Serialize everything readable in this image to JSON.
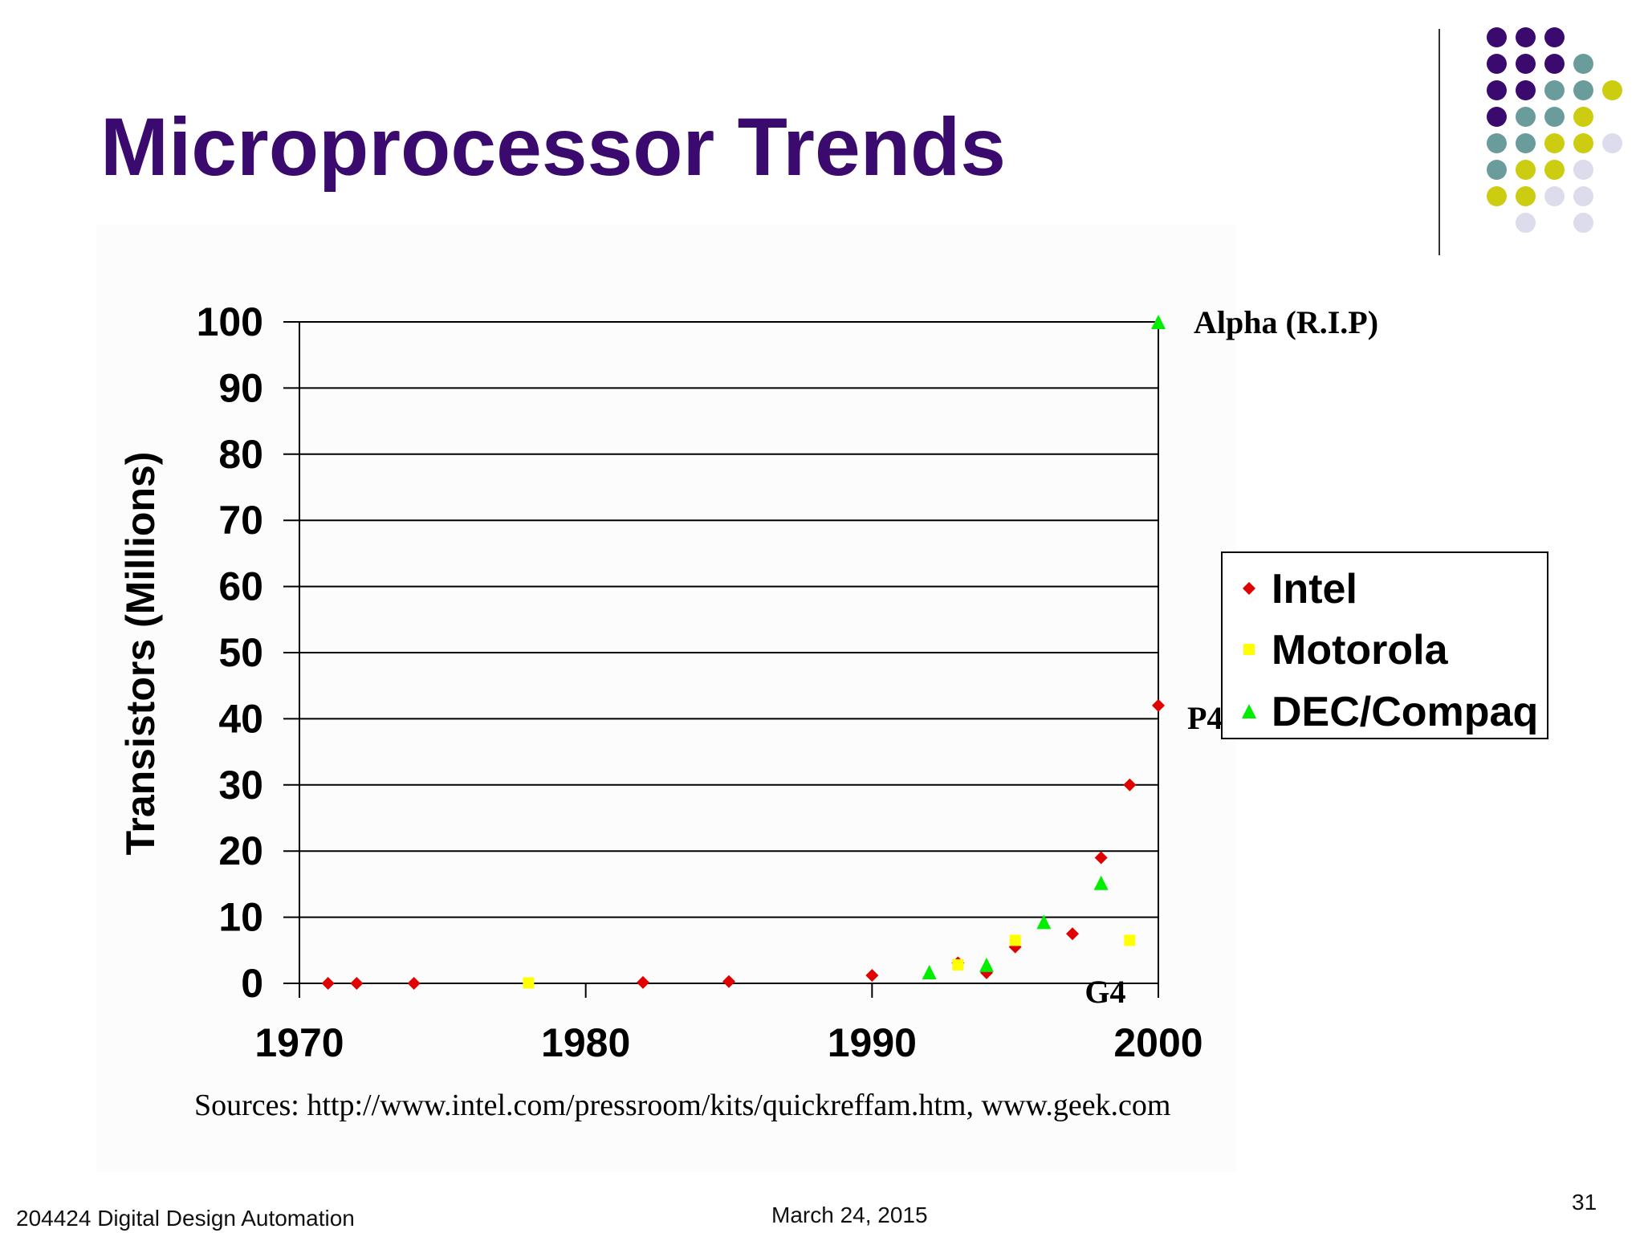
{
  "slide": {
    "title": "Microprocessor Trends",
    "sources": "Sources: http://www.intel.com/pressroom/kits/quickreffam.htm, www.geek.com",
    "footer_left": "204424 Digital Design Automation",
    "footer_center": "March 24, 2015",
    "page_number": "31",
    "accent_colors": {
      "title": "#3a0a6e",
      "purple": "#3a0a6e",
      "teal": "#6a9c9c",
      "olive": "#cccc10",
      "lavender": "#dcdcec"
    }
  },
  "chart_data": {
    "type": "scatter",
    "title": "",
    "xlabel": "",
    "ylabel": "Transistors (Millions)",
    "xlim": [
      1970,
      2000
    ],
    "ylim": [
      0,
      100
    ],
    "x_ticks": [
      "1970",
      "1980",
      "1990",
      "2000"
    ],
    "y_ticks": [
      "0",
      "10",
      "20",
      "30",
      "40",
      "50",
      "60",
      "70",
      "80",
      "90",
      "100"
    ],
    "grid": "horizontal",
    "legend_position": "right",
    "series": [
      {
        "name": "Intel",
        "marker": "diamond",
        "color": "#e00000",
        "points": [
          [
            1971,
            0.0023
          ],
          [
            1972,
            0.0035
          ],
          [
            1974,
            0.006
          ],
          [
            1982,
            0.134
          ],
          [
            1985,
            0.275
          ],
          [
            1990,
            1.2
          ],
          [
            1993,
            3.1
          ],
          [
            1994,
            1.6
          ],
          [
            1995,
            5.5
          ],
          [
            1997,
            7.5
          ],
          [
            1998,
            19
          ],
          [
            1999,
            30
          ],
          [
            2000,
            42
          ]
        ]
      },
      {
        "name": "Motorola",
        "marker": "square",
        "color": "#ffff00",
        "points": [
          [
            1978,
            0.068
          ],
          [
            1993,
            2.8
          ],
          [
            1995,
            6.5
          ],
          [
            1999,
            6.5
          ]
        ]
      },
      {
        "name": "DEC/Compaq",
        "marker": "triangle",
        "color": "#00ee00",
        "points": [
          [
            1992,
            1.7
          ],
          [
            1994,
            2.8
          ],
          [
            1996,
            9.3
          ],
          [
            1998,
            15.2
          ],
          [
            2000,
            100
          ]
        ]
      }
    ],
    "annotations": [
      {
        "text": "Alpha (R.I.P)",
        "x": 2000,
        "y": 100
      },
      {
        "text": "P4",
        "x": 2000,
        "y": 42
      },
      {
        "text": "G4",
        "x": 1999,
        "y": 0
      }
    ]
  }
}
